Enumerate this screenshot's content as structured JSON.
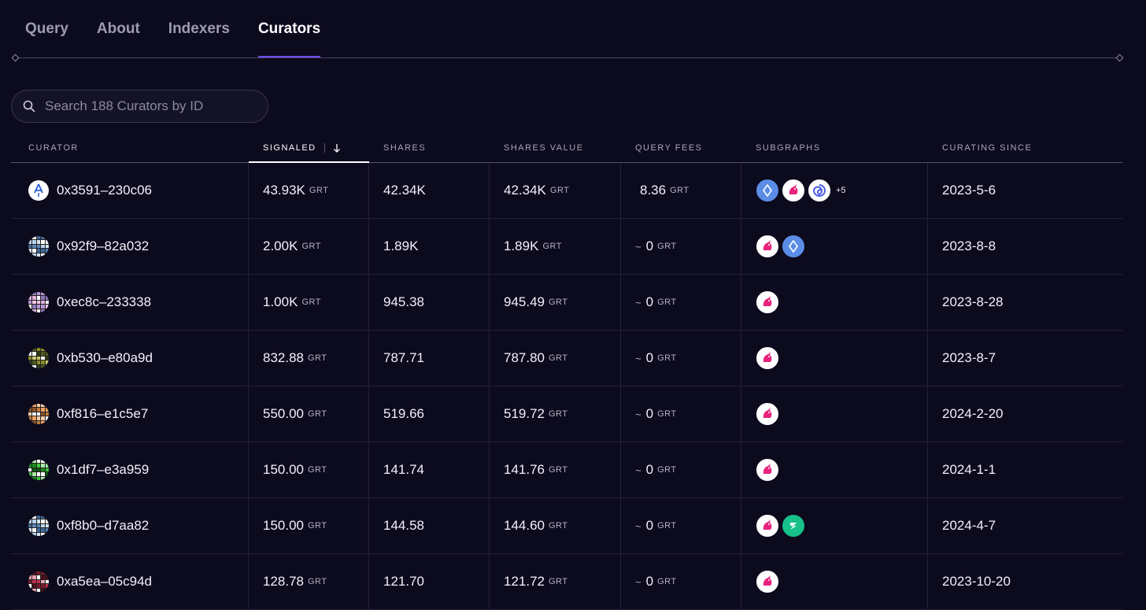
{
  "tabs": [
    {
      "label": "Query",
      "active": false
    },
    {
      "label": "About",
      "active": false
    },
    {
      "label": "Indexers",
      "active": false
    },
    {
      "label": "Curators",
      "active": true
    }
  ],
  "search": {
    "placeholder": "Search 188 Curators by ID",
    "icon": "search-icon"
  },
  "columns": [
    "CURATOR",
    "SIGNALED",
    "SHARES",
    "SHARES VALUE",
    "QUERY FEES",
    "SUBGRAPHS",
    "CURATING SINCE"
  ],
  "sort": {
    "column": "SIGNALED",
    "direction": "descending",
    "icon": "arrow-down-icon"
  },
  "unit": "GRT",
  "colors": {
    "accent": "#6f4cff",
    "background": "#0c0a1d"
  },
  "rows": [
    {
      "id": "0x3591–230c06",
      "signaled": "43.93K",
      "shares": "42.34K",
      "shares_value": "42.34K",
      "fee_prefix": "",
      "query_fees": "8.36",
      "subgraphs": [
        "ens",
        "uniswap",
        "swirl"
      ],
      "more": "+5",
      "since": "2023-5-6",
      "avatar": "logo"
    },
    {
      "id": "0x92f9–82a032",
      "signaled": "2.00K",
      "shares": "1.89K",
      "shares_value": "1.89K",
      "fee_prefix": "~",
      "query_fees": "0",
      "subgraphs": [
        "uniswap",
        "ens"
      ],
      "more": "",
      "since": "2023-8-8",
      "avatar": "blue"
    },
    {
      "id": "0xec8c–233338",
      "signaled": "1.00K",
      "shares": "945.38",
      "shares_value": "945.49",
      "fee_prefix": "~",
      "query_fees": "0",
      "subgraphs": [
        "uniswap"
      ],
      "more": "",
      "since": "2023-8-28",
      "avatar": "pink"
    },
    {
      "id": "0xb530–e80a9d",
      "signaled": "832.88",
      "shares": "787.71",
      "shares_value": "787.80",
      "fee_prefix": "~",
      "query_fees": "0",
      "subgraphs": [
        "uniswap"
      ],
      "more": "",
      "since": "2023-8-7",
      "avatar": "olive"
    },
    {
      "id": "0xf816–e1c5e7",
      "signaled": "550.00",
      "shares": "519.66",
      "shares_value": "519.72",
      "fee_prefix": "~",
      "query_fees": "0",
      "subgraphs": [
        "uniswap"
      ],
      "more": "",
      "since": "2024-2-20",
      "avatar": "orange"
    },
    {
      "id": "0x1df7–e3a959",
      "signaled": "150.00",
      "shares": "141.74",
      "shares_value": "141.76",
      "fee_prefix": "~",
      "query_fees": "0",
      "subgraphs": [
        "uniswap"
      ],
      "more": "",
      "since": "2024-1-1",
      "avatar": "green"
    },
    {
      "id": "0xf8b0–d7aa82",
      "signaled": "150.00",
      "shares": "144.58",
      "shares_value": "144.60",
      "fee_prefix": "~",
      "query_fees": "0",
      "subgraphs": [
        "uniswap",
        "green"
      ],
      "more": "",
      "since": "2024-4-7",
      "avatar": "blue"
    },
    {
      "id": "0xa5ea–05c94d",
      "signaled": "128.78",
      "shares": "121.70",
      "shares_value": "121.72",
      "fee_prefix": "~",
      "query_fees": "0",
      "subgraphs": [
        "uniswap"
      ],
      "more": "",
      "since": "2023-10-20",
      "avatar": "red"
    }
  ]
}
